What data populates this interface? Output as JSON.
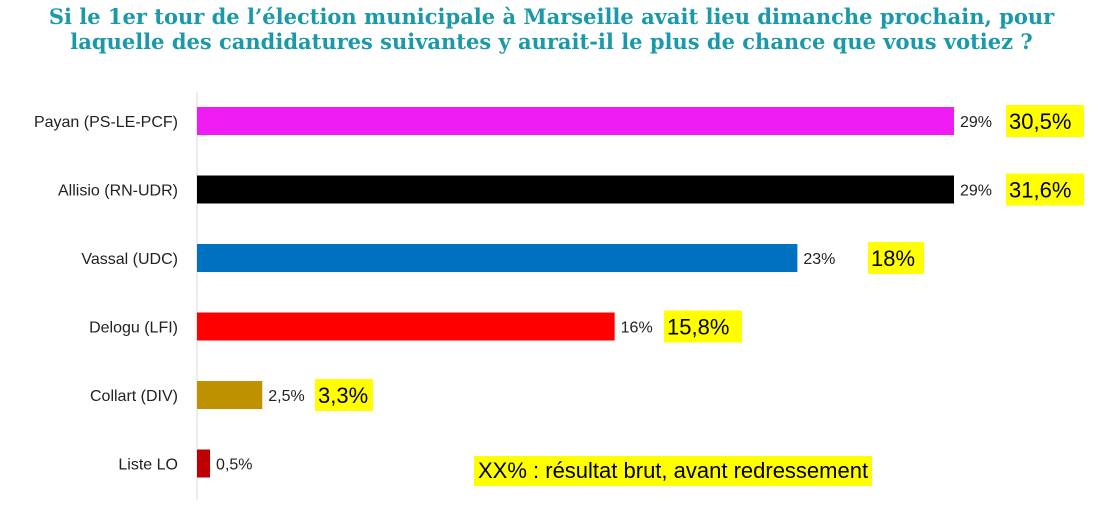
{
  "chart_data": {
    "type": "bar",
    "orientation": "horizontal",
    "title_lines": [
      "Si le 1er tour de l’élection municipale à Marseille avait lieu dimanche prochain, pour",
      "laquelle des candidatures suivantes y aurait-il le plus de chance que vous votiez ?"
    ],
    "categories": [
      "Payan (PS-LE-PCF)",
      "Allisio (RN-UDR)",
      "Vassal (UDC)",
      "Delogu (LFI)",
      "Collart (DIV)",
      "Liste LO"
    ],
    "values": [
      29,
      29,
      23,
      16,
      2.5,
      0.5
    ],
    "value_labels": [
      "29%",
      "29%",
      "23%",
      "16%",
      "2,5%",
      "0,5%"
    ],
    "bar_colors": [
      "#ee1cf2",
      "#000000",
      "#0070c0",
      "#ff0000",
      "#bf9000",
      "#c00000"
    ],
    "raw_results": [
      "30,5%",
      "31,6%",
      "18%",
      "15,8%",
      "3,3%",
      null
    ],
    "raw_results_values": [
      30.5,
      31.6,
      18,
      15.8,
      3.3,
      null
    ],
    "highlight_color": "#ffff00",
    "note": "XX% : résultat brut, avant redressement",
    "xlim": [
      0,
      29
    ],
    "grid": false,
    "legend": "none"
  }
}
